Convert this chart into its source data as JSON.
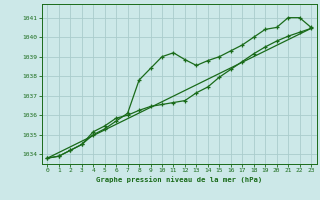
{
  "title": "Graphe pression niveau de la mer (hPa)",
  "bg_color": "#cce8e8",
  "grid_color": "#aacccc",
  "line_color": "#1a6b1a",
  "xlim": [
    -0.5,
    23.5
  ],
  "ylim": [
    1033.5,
    1041.7
  ],
  "yticks": [
    1034,
    1035,
    1036,
    1037,
    1038,
    1039,
    1040,
    1041
  ],
  "xticks": [
    0,
    1,
    2,
    3,
    4,
    5,
    6,
    7,
    8,
    9,
    10,
    11,
    12,
    13,
    14,
    15,
    16,
    17,
    18,
    19,
    20,
    21,
    22,
    23
  ],
  "series1_x": [
    0,
    1,
    2,
    3,
    4,
    5,
    6,
    7,
    8,
    9,
    10,
    11,
    12,
    13,
    14,
    15,
    16,
    17,
    18,
    19,
    20,
    21,
    22,
    23
  ],
  "series1_y": [
    1033.8,
    1033.9,
    1034.2,
    1034.5,
    1035.0,
    1035.3,
    1035.7,
    1036.1,
    1037.8,
    1038.4,
    1039.0,
    1039.2,
    1038.85,
    1038.55,
    1038.8,
    1039.0,
    1039.3,
    1039.6,
    1040.0,
    1040.4,
    1040.5,
    1041.0,
    1041.0,
    1040.5
  ],
  "series2_x": [
    0,
    1,
    2,
    3,
    4,
    5,
    6,
    7,
    8,
    9,
    10,
    11,
    12,
    13,
    14,
    15,
    16,
    17,
    18,
    19,
    20,
    21,
    22,
    23
  ],
  "series2_y": [
    1033.8,
    1033.9,
    1034.2,
    1034.5,
    1035.15,
    1035.45,
    1035.85,
    1036.0,
    1036.25,
    1036.45,
    1036.55,
    1036.65,
    1036.75,
    1037.15,
    1037.45,
    1037.95,
    1038.35,
    1038.75,
    1039.15,
    1039.5,
    1039.8,
    1040.05,
    1040.25,
    1040.45
  ],
  "series3_x": [
    0,
    23
  ],
  "series3_y": [
    1033.8,
    1040.45
  ]
}
